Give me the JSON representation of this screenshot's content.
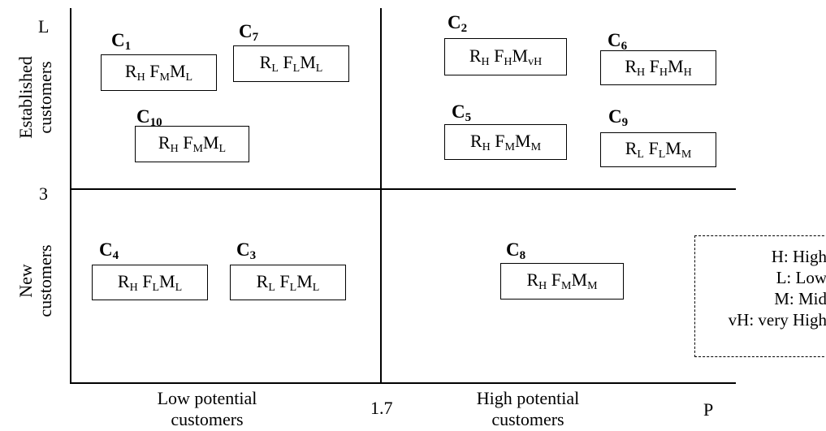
{
  "axes": {
    "y_top_label": "L",
    "y_mid_value": "3",
    "x_mid_value": "1.7",
    "x_end_label": "P"
  },
  "rows": {
    "top": [
      "Established",
      "customers"
    ],
    "bottom": [
      "New",
      "customers"
    ]
  },
  "columns": {
    "left": [
      "Low potential",
      "customers"
    ],
    "right": [
      "High potential",
      "customers"
    ]
  },
  "clusters": [
    {
      "name": "C",
      "num": "1",
      "r": "H",
      "f": "M",
      "m": "L"
    },
    {
      "name": "C",
      "num": "7",
      "r": "L",
      "f": "L",
      "m": "L"
    },
    {
      "name": "C",
      "num": "10",
      "r": "H",
      "f": "M",
      "m": "L"
    },
    {
      "name": "C",
      "num": "2",
      "r": "H",
      "f": "H",
      "m": "vH"
    },
    {
      "name": "C",
      "num": "6",
      "r": "H",
      "f": "H",
      "m": "H"
    },
    {
      "name": "C",
      "num": "5",
      "r": "H",
      "f": "M",
      "m": "M"
    },
    {
      "name": "C",
      "num": "9",
      "r": "L",
      "f": "L",
      "m": "M"
    },
    {
      "name": "C",
      "num": "4",
      "r": "H",
      "f": "L",
      "m": "L"
    },
    {
      "name": "C",
      "num": "3",
      "r": "L",
      "f": "L",
      "m": "L"
    },
    {
      "name": "C",
      "num": "8",
      "r": "H",
      "f": "M",
      "m": "M"
    }
  ],
  "legend": [
    "H: High",
    "L: Low",
    "M: Mid",
    "vH: very High"
  ]
}
